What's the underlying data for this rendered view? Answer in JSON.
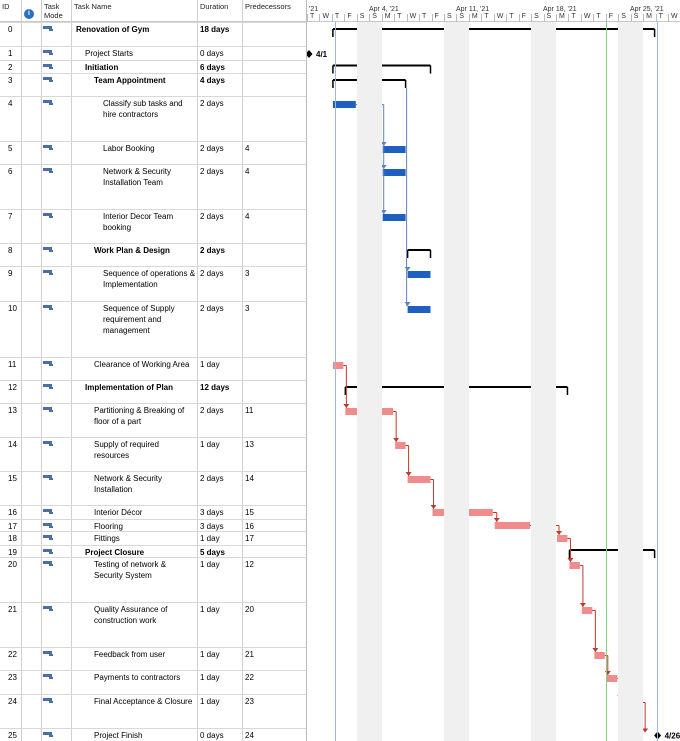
{
  "columns": {
    "id": "ID",
    "mode": "Task Mode",
    "name": "Task Name",
    "duration": "Duration",
    "predecessors": "Predecessors"
  },
  "timeline": {
    "top": [
      "'21",
      "Apr 4, '21",
      "Apr 11, '21",
      "Apr 18, '21",
      "Apr 25, '21"
    ],
    "days": [
      "T",
      "W",
      "T",
      "F",
      "S",
      "S",
      "M",
      "T",
      "W",
      "T",
      "F",
      "S",
      "S",
      "M",
      "T",
      "W",
      "T",
      "F",
      "S",
      "S",
      "M",
      "T",
      "W",
      "T",
      "F",
      "S",
      "S",
      "M",
      "T",
      "W"
    ]
  },
  "tasks": [
    {
      "id": "0",
      "name": "Renovation of Gym",
      "duration": "18 days",
      "pred": "",
      "level": 0,
      "bold": true
    },
    {
      "id": "1",
      "name": "Project Starts",
      "duration": "0 days",
      "pred": "",
      "level": 1,
      "bold": false
    },
    {
      "id": "2",
      "name": "Initiation",
      "duration": "6 days",
      "pred": "",
      "level": 1,
      "bold": true
    },
    {
      "id": "3",
      "name": "Team Appointment",
      "duration": "4 days",
      "pred": "",
      "level": 2,
      "bold": true
    },
    {
      "id": "4",
      "name": "Classify sub tasks and hire contractors",
      "duration": "2 days",
      "pred": "",
      "level": 3,
      "bold": false
    },
    {
      "id": "5",
      "name": "Labor Booking",
      "duration": "2 days",
      "pred": "4",
      "level": 3,
      "bold": false
    },
    {
      "id": "6",
      "name": "Network & Security Installation Team",
      "duration": "2 days",
      "pred": "4",
      "level": 3,
      "bold": false
    },
    {
      "id": "7",
      "name": "Interior Decor Team booking",
      "duration": "2 days",
      "pred": "4",
      "level": 3,
      "bold": false
    },
    {
      "id": "8",
      "name": "Work Plan & Design",
      "duration": "2 days",
      "pred": "",
      "level": 2,
      "bold": true
    },
    {
      "id": "9",
      "name": "Sequence of operations & Implementation",
      "duration": "2 days",
      "pred": "3",
      "level": 3,
      "bold": false
    },
    {
      "id": "10",
      "name": "Sequence of Supply requirement and management",
      "duration": "2 days",
      "pred": "3",
      "level": 3,
      "bold": false
    },
    {
      "id": "11",
      "name": "Clearance of Working Area",
      "duration": "1 day",
      "pred": "",
      "level": 2,
      "bold": false
    },
    {
      "id": "12",
      "name": "Implementation of Plan",
      "duration": "12 days",
      "pred": "",
      "level": 1,
      "bold": true
    },
    {
      "id": "13",
      "name": "Partitioning & Breaking of floor of a part",
      "duration": "2 days",
      "pred": "11",
      "level": 2,
      "bold": false
    },
    {
      "id": "14",
      "name": "Supply of required resources",
      "duration": "1 day",
      "pred": "13",
      "level": 2,
      "bold": false
    },
    {
      "id": "15",
      "name": "Network & Security Installation",
      "duration": "2 days",
      "pred": "14",
      "level": 2,
      "bold": false
    },
    {
      "id": "16",
      "name": "Interior Décor",
      "duration": "3 days",
      "pred": "15",
      "level": 2,
      "bold": false
    },
    {
      "id": "17",
      "name": "Flooring",
      "duration": "3 days",
      "pred": "16",
      "level": 2,
      "bold": false
    },
    {
      "id": "18",
      "name": "Fittings",
      "duration": "1 day",
      "pred": "17",
      "level": 2,
      "bold": false
    },
    {
      "id": "19",
      "name": "Project Closure",
      "duration": "5 days",
      "pred": "",
      "level": 1,
      "bold": true
    },
    {
      "id": "20",
      "name": "Testing of network & Security System",
      "duration": "1 day",
      "pred": "12",
      "level": 2,
      "bold": false
    },
    {
      "id": "21",
      "name": "Quality Assurance of construction work",
      "duration": "1 day",
      "pred": "20",
      "level": 2,
      "bold": false
    },
    {
      "id": "22",
      "name": "Feedback from user",
      "duration": "1 day",
      "pred": "21",
      "level": 2,
      "bold": false
    },
    {
      "id": "23",
      "name": "Payments to contractors",
      "duration": "1 day",
      "pred": "22",
      "level": 2,
      "bold": false
    },
    {
      "id": "24",
      "name": "Final Acceptance & Closure",
      "duration": "1 day",
      "pred": "23",
      "level": 2,
      "bold": false
    },
    {
      "id": "25",
      "name": "Project Finish",
      "duration": "0 days",
      "pred": "24",
      "level": 2,
      "bold": false
    }
  ],
  "milestones": {
    "start": "4/1",
    "finish": "4/26"
  },
  "colors": {
    "blue_bar": "#1f5fbf",
    "red_bar": "#f08c8c",
    "summary": "#000000",
    "link_blue": "#5f84b8",
    "link_red": "#c0392b"
  }
}
